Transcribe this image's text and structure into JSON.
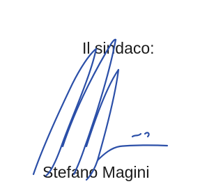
{
  "signature_block": {
    "role": "Il sindaco:",
    "name": "Stefano Magini"
  }
}
